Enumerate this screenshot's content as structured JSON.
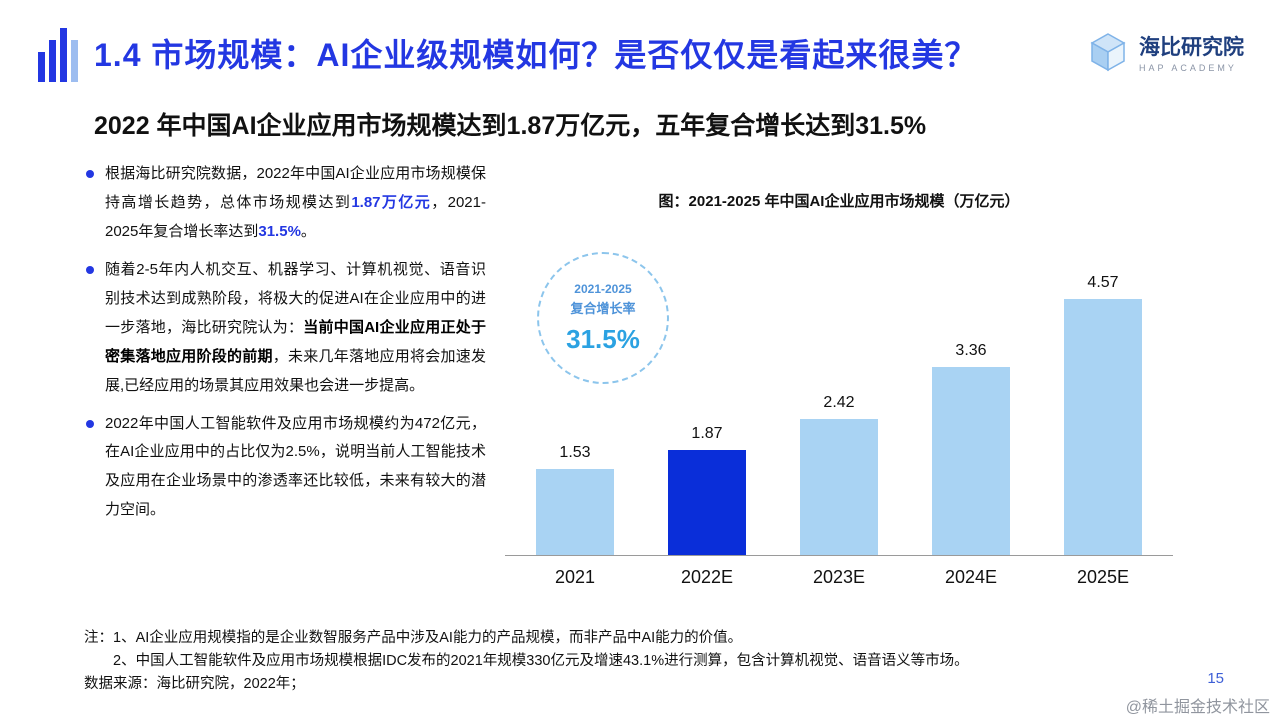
{
  "header": {
    "title": "1.4 市场规模：AI企业级规模如何？是否仅仅是看起来很美？",
    "brand": {
      "name": "海比研究院",
      "subname": "HAP ACADEMY"
    }
  },
  "subtitle": "2022 年中国AI企业应用市场规模达到1.87万亿元，五年复合增长达到31.5%",
  "bullets": [
    {
      "segments": [
        {
          "text": "根据海比研究院数据，2022年中国AI企业应用市场规模保持高增长趋势，总体市场规模达到"
        },
        {
          "text": "1.87万亿元",
          "style": "em-blue"
        },
        {
          "text": "，2021-2025年复合增长率达到"
        },
        {
          "text": "31.5%",
          "style": "em-blue"
        },
        {
          "text": "。"
        }
      ]
    },
    {
      "segments": [
        {
          "text": "随着2-5年内人机交互、机器学习、计算机视觉、语音识别技术达到成熟阶段，将极大的促进AI在企业应用中的进一步落地，海比研究院认为："
        },
        {
          "text": "当前中国AI企业应用正处于密集落地应用阶段的前期",
          "style": "em-bold"
        },
        {
          "text": "，未来几年落地应用将会加速发展,已经应用的场景其应用效果也会进一步提高。"
        }
      ]
    },
    {
      "segments": [
        {
          "text": "2022年中国人工智能软件及应用市场规模约为472亿元，在AI企业应用中的占比仅为2.5%，说明当前人工智能技术及应用在企业场景中的渗透率还比较低，未来有较大的潜力空间。"
        }
      ]
    }
  ],
  "chart_data": {
    "type": "bar",
    "title": "图：2021-2025 年中国AI企业应用市场规模（万亿元）",
    "categories": [
      "2021",
      "2022E",
      "2023E",
      "2024E",
      "2025E"
    ],
    "values": [
      1.53,
      1.87,
      2.42,
      3.36,
      4.57
    ],
    "highlight_index": 1,
    "ylim": [
      0,
      5
    ],
    "bar_color": "#A9D3F3",
    "highlight_color": "#0A2ED9",
    "axis_color": "#9a9a9a",
    "legend_position": "none",
    "grid": false,
    "annotation": {
      "line1": "2021-2025",
      "line2": "复合增长率",
      "value": "31.5%"
    }
  },
  "notes": {
    "line1": "注：1、AI企业应用规模指的是企业数智服务产品中涉及AI能力的产品规模，而非产品中AI能力的价值。",
    "line2": "2、中国人工智能软件及应用市场规模根据IDC发布的2021年规模330亿元及增速43.1%进行测算，包含计算机视觉、语音语义等市场。",
    "source": "数据来源：海比研究院，2022年；"
  },
  "page_number": "15",
  "watermark": "@稀土掘金技术社区"
}
